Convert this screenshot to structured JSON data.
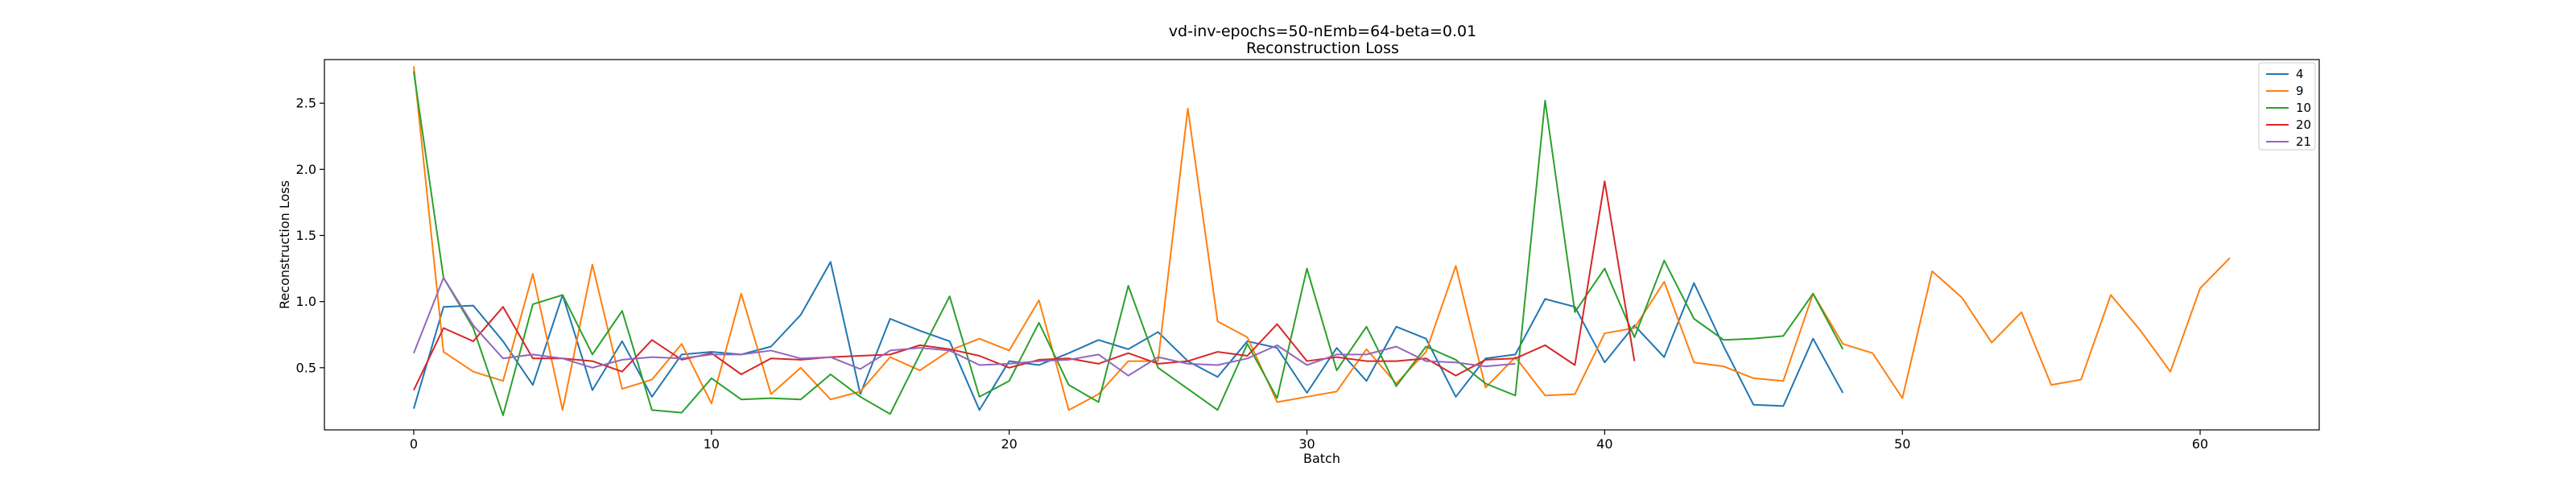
{
  "chart_data": {
    "type": "line",
    "title": "vd-inv-epochs=50-nEmb=64-beta=0.01",
    "subtitle": "Reconstruction Loss",
    "xlabel": "Batch",
    "ylabel": "Reconstruction Loss",
    "xlim": [
      -3,
      64
    ],
    "ylim": [
      0.03,
      2.83
    ],
    "xticks": [
      0,
      10,
      20,
      30,
      40,
      50,
      60
    ],
    "yticks": [
      0.5,
      1.0,
      1.5,
      2.0,
      2.5
    ],
    "ytick_labels": [
      "0.5",
      "1.0",
      "1.5",
      "2.0",
      "2.5"
    ],
    "grid": false,
    "legend_position": "top-right",
    "series": [
      {
        "name": "4",
        "color": "#1f77b4",
        "values": [
          0.19,
          0.96,
          0.97,
          0.7,
          0.37,
          1.05,
          0.33,
          0.7,
          0.28,
          0.6,
          0.62,
          0.6,
          0.66,
          0.9,
          1.3,
          0.3,
          0.87,
          0.78,
          0.7,
          0.18,
          0.55,
          0.52,
          0.61,
          0.71,
          0.64,
          0.77,
          0.55,
          0.43,
          0.7,
          0.65,
          0.31,
          0.65,
          0.4,
          0.81,
          0.72,
          0.28,
          0.57,
          0.6,
          1.02,
          0.96,
          0.54,
          0.82,
          0.58,
          1.14,
          0.66,
          0.22,
          0.21,
          0.72,
          0.31
        ]
      },
      {
        "name": "9",
        "color": "#ff7f0e",
        "values": [
          2.78,
          0.62,
          0.47,
          0.4,
          1.21,
          0.18,
          1.28,
          0.34,
          0.41,
          0.68,
          0.23,
          1.06,
          0.3,
          0.5,
          0.26,
          0.32,
          0.58,
          0.48,
          0.63,
          0.72,
          0.63,
          1.01,
          0.18,
          0.3,
          0.55,
          0.55,
          2.46,
          0.85,
          0.73,
          0.24,
          0.28,
          0.32,
          0.64,
          0.38,
          0.62,
          1.27,
          0.35,
          0.58,
          0.29,
          0.3,
          0.76,
          0.8,
          1.15,
          0.54,
          0.51,
          0.42,
          0.4,
          1.06,
          0.68,
          0.61,
          0.27,
          1.23,
          1.03,
          0.69,
          0.92,
          0.37,
          0.41,
          1.05,
          0.78,
          0.47,
          1.1,
          1.33
        ]
      },
      {
        "name": "10",
        "color": "#2ca02c",
        "values": [
          2.74,
          1.18,
          0.8,
          0.14,
          0.98,
          1.05,
          0.6,
          0.93,
          0.18,
          0.16,
          0.42,
          0.26,
          0.27,
          0.26,
          0.45,
          0.28,
          0.15,
          0.6,
          1.04,
          0.28,
          0.4,
          0.84,
          0.37,
          0.24,
          1.12,
          0.5,
          0.34,
          0.18,
          0.68,
          0.27,
          1.25,
          0.48,
          0.81,
          0.36,
          0.66,
          0.56,
          0.38,
          0.29,
          2.52,
          0.92,
          1.25,
          0.73,
          1.31,
          0.87,
          0.71,
          0.72,
          0.74,
          1.06,
          0.64
        ]
      },
      {
        "name": "20",
        "color": "#d62728",
        "values": [
          0.33,
          0.8,
          0.7,
          0.96,
          0.57,
          0.57,
          0.55,
          0.47,
          0.71,
          0.56,
          0.61,
          0.45,
          0.57,
          0.56,
          0.58,
          0.59,
          0.6,
          0.67,
          0.64,
          0.59,
          0.5,
          0.56,
          0.57,
          0.53,
          0.61,
          0.53,
          0.55,
          0.62,
          0.59,
          0.83,
          0.55,
          0.58,
          0.55,
          0.55,
          0.57,
          0.44,
          0.56,
          0.57,
          0.67,
          0.52,
          1.91,
          0.55
        ]
      },
      {
        "name": "21",
        "color": "#9467bd",
        "values": [
          0.61,
          1.18,
          0.82,
          0.57,
          0.6,
          0.57,
          0.5,
          0.56,
          0.58,
          0.57,
          0.6,
          0.6,
          0.63,
          0.57,
          0.58,
          0.49,
          0.63,
          0.65,
          0.63,
          0.52,
          0.53,
          0.55,
          0.56,
          0.6,
          0.44,
          0.58,
          0.53,
          0.52,
          0.57,
          0.67,
          0.52,
          0.6,
          0.6,
          0.66,
          0.55,
          0.54,
          0.51,
          0.53
        ]
      }
    ]
  }
}
